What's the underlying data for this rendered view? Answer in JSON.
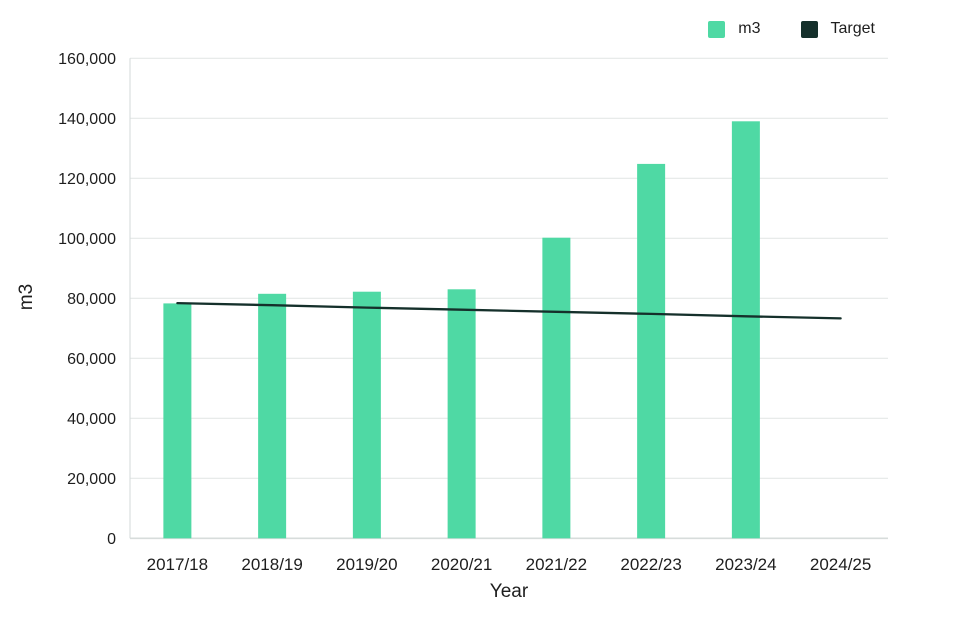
{
  "legend": {
    "items": [
      {
        "label": "m3",
        "swatch_color": "#4fd9a4"
      },
      {
        "label": "Target",
        "swatch_color": "#15302b"
      }
    ]
  },
  "axes": {
    "x_title": "Year",
    "y_title": "m3"
  },
  "style": {
    "bar_color": "#4fd9a4",
    "target_line_color": "#15302b",
    "gridline_color": "#e5e8e7",
    "axis_line_color": "#d7dcdb",
    "text_color": "#1e1e1e"
  },
  "chart_data": {
    "type": "bar",
    "title": "",
    "xlabel": "Year",
    "ylabel": "m3",
    "categories": [
      "2017/18",
      "2018/19",
      "2019/20",
      "2020/21",
      "2021/22",
      "2022/23",
      "2023/24",
      "2024/25"
    ],
    "series": [
      {
        "name": "m3",
        "kind": "bar",
        "values": [
          78300,
          81500,
          82200,
          83000,
          100200,
          124800,
          139000,
          null
        ]
      },
      {
        "name": "Target",
        "kind": "line",
        "values": [
          78400,
          77700,
          76900,
          76200,
          75500,
          74800,
          74000,
          73300
        ]
      }
    ],
    "ylim": [
      0,
      160000
    ],
    "ytick_step": 20000,
    "ytick_labels": [
      "0",
      "20,000",
      "40,000",
      "60,000",
      "80,000",
      "100,000",
      "120,000",
      "140,000",
      "160,000"
    ],
    "grid": true,
    "legend_position": "top-right"
  }
}
